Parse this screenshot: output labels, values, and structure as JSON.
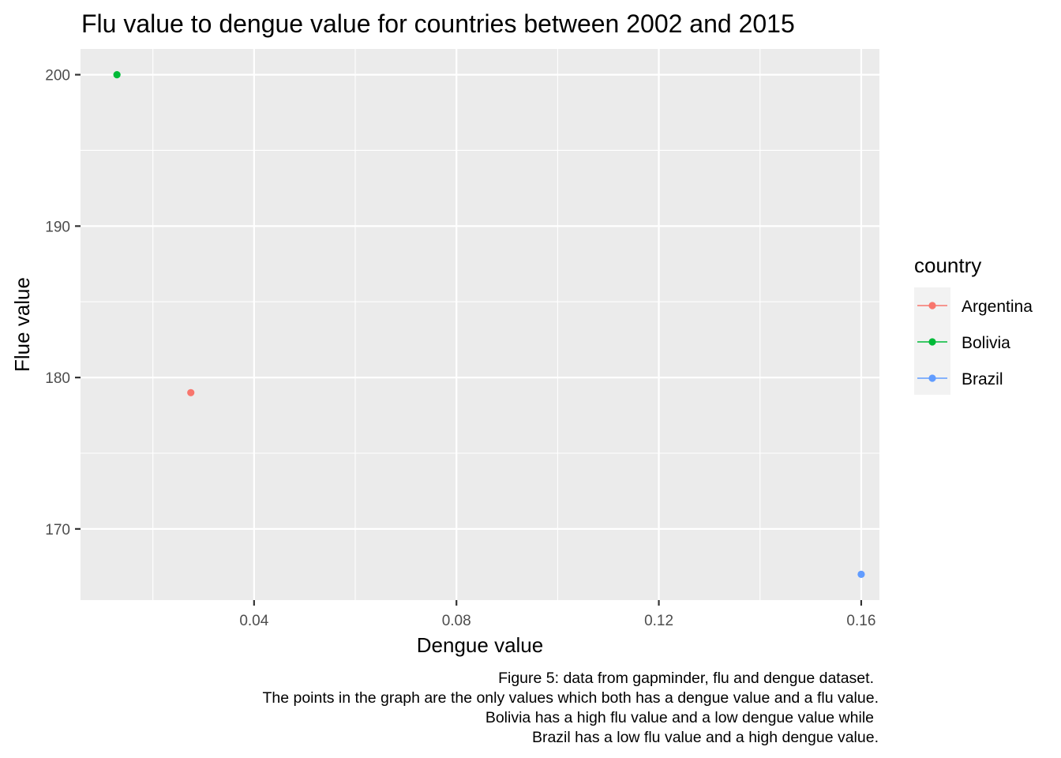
{
  "chart_data": {
    "type": "scatter",
    "title": "Flu value to dengue value for countries between 2002 and 2015",
    "xlabel": "Dengue value",
    "ylabel": "Flue value",
    "xlim": [
      0.0057,
      0.1636
    ],
    "ylim": [
      165.3,
      201.7
    ],
    "x_ticks": [
      0.04,
      0.08,
      0.12,
      0.16
    ],
    "x_tick_labels": [
      "0.04",
      "0.08",
      "0.12",
      "0.16"
    ],
    "x_minor_ticks": [
      0.02,
      0.06,
      0.1,
      0.14
    ],
    "y_ticks": [
      170,
      180,
      190,
      200
    ],
    "y_tick_labels": [
      "170",
      "180",
      "190",
      "200"
    ],
    "y_minor_ticks": [
      175,
      185,
      195
    ],
    "grid": true,
    "legend": {
      "title": "country",
      "position": "right",
      "entries": [
        {
          "label": "Argentina",
          "color": "#F8766D"
        },
        {
          "label": "Bolivia",
          "color": "#00BA38"
        },
        {
          "label": "Brazil",
          "color": "#619CFF"
        }
      ]
    },
    "series": [
      {
        "name": "Argentina",
        "color": "#F8766D",
        "points": [
          {
            "x": 0.0275,
            "y": 179
          }
        ]
      },
      {
        "name": "Bolivia",
        "color": "#00BA38",
        "points": [
          {
            "x": 0.0129,
            "y": 200
          }
        ]
      },
      {
        "name": "Brazil",
        "color": "#619CFF",
        "points": [
          {
            "x": 0.16,
            "y": 167
          }
        ]
      }
    ],
    "caption": [
      "Figure 5: data from gapminder, flu and dengue dataset.",
      "The points in the graph are the only values which both has a dengue value and a flu value.",
      "Bolivia has a high flu value and a low dengue value while",
      "Brazil has a low flu value and a high dengue value."
    ],
    "panel_background": "#EBEBEB",
    "grid_color": "#FFFFFF"
  }
}
